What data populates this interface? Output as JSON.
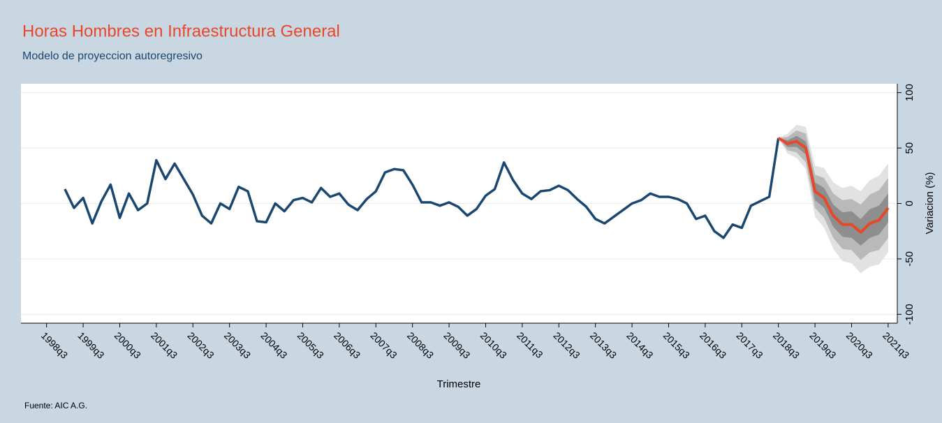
{
  "chart_data": {
    "type": "fan",
    "title": "Horas Hombres en Infraestructura General",
    "subtitle": "Modelo de proyeccion autoregresivo",
    "x_label": "Trimestre",
    "y_label": "Variacion (%)",
    "source": "Fuente: AIC A.G.",
    "xlim": [
      1997.8,
      2021.75
    ],
    "ylim": [
      -108,
      108
    ],
    "yticks": [
      -100,
      -50,
      0,
      50,
      100
    ],
    "xticks": [
      {
        "value": 1998.5,
        "label": "1998q3"
      },
      {
        "value": 1999.5,
        "label": "1999q3"
      },
      {
        "value": 2000.5,
        "label": "2000q3"
      },
      {
        "value": 2001.5,
        "label": "2001q3"
      },
      {
        "value": 2002.5,
        "label": "2002q3"
      },
      {
        "value": 2003.5,
        "label": "2003q3"
      },
      {
        "value": 2004.5,
        "label": "2004q3"
      },
      {
        "value": 2005.5,
        "label": "2005q3"
      },
      {
        "value": 2006.5,
        "label": "2006q3"
      },
      {
        "value": 2007.5,
        "label": "2007q3"
      },
      {
        "value": 2008.5,
        "label": "2008q3"
      },
      {
        "value": 2009.5,
        "label": "2009q3"
      },
      {
        "value": 2010.5,
        "label": "2010q3"
      },
      {
        "value": 2011.5,
        "label": "2011q3"
      },
      {
        "value": 2012.5,
        "label": "2012q3"
      },
      {
        "value": 2013.5,
        "label": "2013q3"
      },
      {
        "value": 2014.5,
        "label": "2014q3"
      },
      {
        "value": 2015.5,
        "label": "2015q3"
      },
      {
        "value": 2016.5,
        "label": "2016q3"
      },
      {
        "value": 2017.5,
        "label": "2017q3"
      },
      {
        "value": 2018.5,
        "label": "2018q3"
      },
      {
        "value": 2019.5,
        "label": "2019q3"
      },
      {
        "value": 2020.5,
        "label": "2020q3"
      },
      {
        "value": 2021.5,
        "label": "2021q3"
      }
    ],
    "grid": true,
    "series": [
      {
        "color": "#1a476f",
        "x": [
          1999,
          1999.25,
          1999.5,
          1999.75,
          2000,
          2000.25,
          2000.5,
          2000.75,
          2001,
          2001.25,
          2001.5,
          2001.75,
          2002,
          2002.25,
          2002.5,
          2002.75,
          2003,
          2003.25,
          2003.5,
          2003.75,
          2004,
          2004.25,
          2004.5,
          2004.75,
          2005,
          2005.25,
          2005.5,
          2005.75,
          2006,
          2006.25,
          2006.5,
          2006.75,
          2007,
          2007.25,
          2007.5,
          2007.75,
          2008,
          2008.25,
          2008.5,
          2008.75,
          2009,
          2009.25,
          2009.5,
          2009.75,
          2010,
          2010.25,
          2010.5,
          2010.75,
          2011,
          2011.25,
          2011.5,
          2011.75,
          2012,
          2012.25,
          2012.5,
          2012.75,
          2013,
          2013.25,
          2013.5,
          2013.75,
          2014,
          2014.25,
          2014.5,
          2014.75,
          2015,
          2015.25,
          2015.5,
          2015.75,
          2016,
          2016.25,
          2016.5,
          2016.75,
          2017,
          2017.25,
          2017.5,
          2017.75,
          2018,
          2018.25,
          2018.5
        ],
        "values": [
          13,
          -4,
          5,
          -18,
          2,
          17,
          -13,
          9,
          -6,
          0,
          39,
          22,
          36,
          22,
          8,
          -11,
          -18,
          0,
          -5,
          15,
          11,
          -16,
          -17,
          0,
          -7,
          3,
          5,
          1,
          14,
          6,
          9,
          -1,
          -6,
          4,
          11,
          28,
          31,
          30,
          17,
          1,
          1,
          -2,
          1,
          -3,
          -11,
          -5,
          7,
          13,
          37,
          21,
          9,
          4,
          11,
          12,
          16,
          12,
          4,
          -3,
          -14,
          -18,
          -12,
          -6,
          0,
          3,
          9,
          6,
          6,
          4,
          0,
          -14,
          -11,
          -25,
          -31,
          -19,
          -22,
          -2,
          2,
          6,
          59
        ]
      },
      {
        "color": "#e8472a",
        "x": [
          2018.5,
          2018.75,
          2019,
          2019.25,
          2019.5,
          2019.75,
          2020,
          2020.25,
          2020.5,
          2020.75,
          2021,
          2021.25,
          2021.5
        ],
        "values": [
          59,
          54,
          56,
          50,
          11,
          5,
          -11,
          -19,
          -19,
          -26,
          -18,
          -15,
          -4
        ]
      }
    ],
    "bands": [
      {
        "color": "#e2e2e2",
        "upper": [
          59,
          63,
          71,
          69,
          34,
          32,
          19,
          14,
          16,
          11,
          21,
          25,
          36
        ],
        "lower": [
          59,
          45,
          41,
          31,
          -12,
          -22,
          -41,
          -52,
          -54,
          -63,
          -57,
          -55,
          -44
        ]
      },
      {
        "color": "#b9b9b9",
        "upper": [
          59,
          60,
          66,
          63,
          26,
          23,
          9,
          3,
          4,
          -1,
          8,
          12,
          23
        ],
        "lower": [
          59,
          48,
          46,
          37,
          -4,
          -13,
          -31,
          -41,
          -42,
          -51,
          -44,
          -42,
          -31
        ]
      },
      {
        "color": "#8e8e8e",
        "upper": [
          59,
          57,
          61,
          56,
          19,
          14,
          -1,
          -8,
          -7,
          -14,
          -5,
          -2,
          9
        ],
        "lower": [
          59,
          51,
          51,
          44,
          3,
          -4,
          -21,
          -30,
          -31,
          -38,
          -31,
          -28,
          -17
        ]
      }
    ]
  }
}
